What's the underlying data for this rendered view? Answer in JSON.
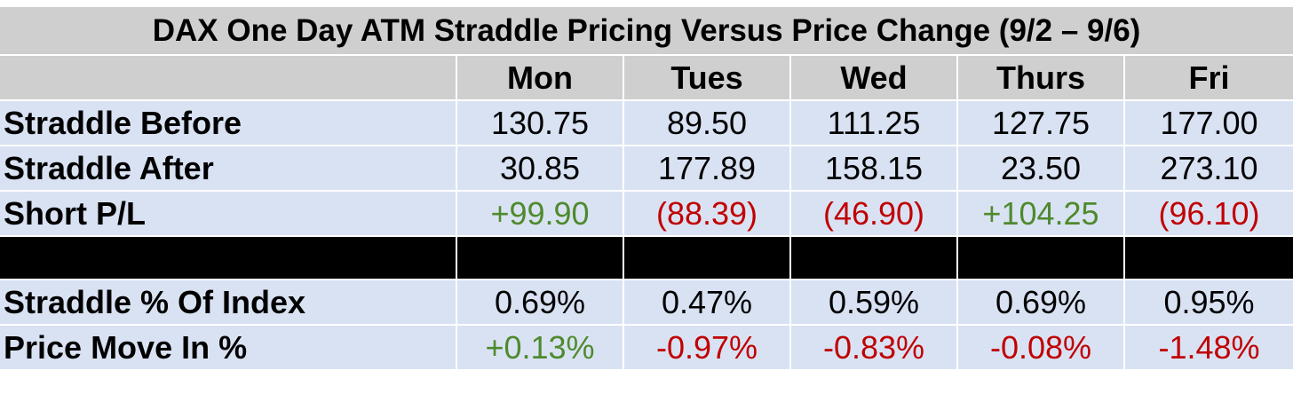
{
  "title": "DAX One Day ATM Straddle Pricing Versus Price Change (9/2 – 9/6)",
  "days": [
    "Mon",
    "Tues",
    "Wed",
    "Thurs",
    "Fri"
  ],
  "rows": [
    {
      "label": "Straddle Before",
      "values": [
        "130.75",
        "89.50",
        "111.25",
        "127.75",
        "177.00"
      ],
      "signs": [
        "",
        "",
        "",
        "",
        ""
      ]
    },
    {
      "label": "Straddle After",
      "values": [
        "30.85",
        "177.89",
        "158.15",
        "23.50",
        "273.10"
      ],
      "signs": [
        "",
        "",
        "",
        "",
        ""
      ]
    },
    {
      "label": "Short P/L",
      "values": [
        "+99.90",
        "(88.39)",
        "(46.90)",
        "+104.25",
        "(96.10)"
      ],
      "signs": [
        "pos",
        "neg",
        "neg",
        "pos",
        "neg"
      ]
    },
    {
      "label": "Straddle % Of Index",
      "values": [
        "0.69%",
        "0.47%",
        "0.59%",
        "0.69%",
        "0.95%"
      ],
      "signs": [
        "",
        "",
        "",
        "",
        ""
      ]
    },
    {
      "label": "Price Move In %",
      "values": [
        "+0.13%",
        "-0.97%",
        "-0.83%",
        "-0.08%",
        "-1.48%"
      ],
      "signs": [
        "pos",
        "neg",
        "neg",
        "neg",
        "neg"
      ]
    }
  ],
  "colors": {
    "positive": "#4e8a2d",
    "negative": "#c00000",
    "header_bg": "#d0cfcf",
    "row_bg": "#d9e2f3",
    "separator": "#000000"
  }
}
